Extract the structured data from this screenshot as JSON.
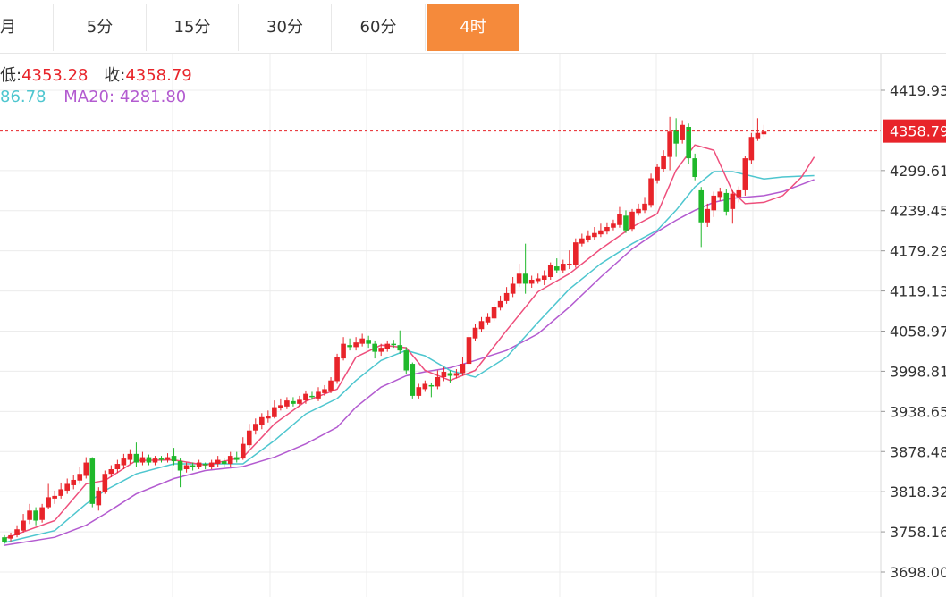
{
  "tabs": [
    {
      "label": "月",
      "active": false
    },
    {
      "label": "5分",
      "active": false
    },
    {
      "label": "15分",
      "active": false
    },
    {
      "label": "30分",
      "active": false
    },
    {
      "label": "60分",
      "active": false
    },
    {
      "label": "4时",
      "active": true
    }
  ],
  "info": {
    "low_label": "低:",
    "low_value": "4353.28",
    "close_label": "收:",
    "close_value": "4358.79",
    "ma10_value": "86.78",
    "ma20_label": "MA20:",
    "ma20_value": "4281.80"
  },
  "colors": {
    "up": "#e8242a",
    "down": "#1fb82b",
    "ma5": "#ee4f7c",
    "ma10": "#4ec6cf",
    "ma20": "#b35bd0",
    "active_tab": "#f58a3b",
    "price_line": "#e8242a"
  },
  "chart_data": {
    "type": "candlestick",
    "y_ticks": [
      "4419.93",
      "4299.61",
      "4239.45",
      "4179.29",
      "4119.13",
      "4058.97",
      "3998.81",
      "3938.65",
      "3878.48",
      "3818.32",
      "3758.16",
      "3698.00"
    ],
    "ylim": [
      3698.0,
      4419.93
    ],
    "current_price": "4358.79",
    "candles": [
      [
        3750,
        3743,
        3753,
        3740
      ],
      [
        3748,
        3753,
        3757,
        3744
      ],
      [
        3753,
        3762,
        3768,
        3750
      ],
      [
        3760,
        3775,
        3785,
        3757
      ],
      [
        3776,
        3790,
        3800,
        3770
      ],
      [
        3790,
        3775,
        3795,
        3768
      ],
      [
        3776,
        3795,
        3800,
        3772
      ],
      [
        3795,
        3810,
        3830,
        3792
      ],
      [
        3808,
        3812,
        3820,
        3800
      ],
      [
        3812,
        3822,
        3832,
        3808
      ],
      [
        3820,
        3830,
        3838,
        3815
      ],
      [
        3828,
        3836,
        3844,
        3822
      ],
      [
        3835,
        3845,
        3855,
        3830
      ],
      [
        3842,
        3862,
        3870,
        3838
      ],
      [
        3868,
        3800,
        3870,
        3795
      ],
      [
        3798,
        3820,
        3825,
        3790
      ],
      [
        3818,
        3845,
        3850,
        3815
      ],
      [
        3845,
        3852,
        3858,
        3840
      ],
      [
        3852,
        3860,
        3866,
        3846
      ],
      [
        3858,
        3868,
        3875,
        3852
      ],
      [
        3866,
        3875,
        3882,
        3860
      ],
      [
        3875,
        3862,
        3892,
        3855
      ],
      [
        3862,
        3870,
        3878,
        3858
      ],
      [
        3870,
        3862,
        3874,
        3858
      ],
      [
        3862,
        3868,
        3872,
        3858
      ],
      [
        3868,
        3866,
        3872,
        3862
      ],
      [
        3866,
        3870,
        3876,
        3862
      ],
      [
        3872,
        3864,
        3884,
        3858
      ],
      [
        3864,
        3850,
        3868,
        3825
      ],
      [
        3852,
        3858,
        3862,
        3847
      ],
      [
        3858,
        3856,
        3862,
        3850
      ],
      [
        3856,
        3862,
        3866,
        3852
      ],
      [
        3860,
        3858,
        3862,
        3852
      ],
      [
        3856,
        3862,
        3866,
        3852
      ],
      [
        3860,
        3866,
        3872,
        3856
      ],
      [
        3864,
        3860,
        3868,
        3856
      ],
      [
        3860,
        3872,
        3878,
        3856
      ],
      [
        3870,
        3866,
        3878,
        3862
      ],
      [
        3868,
        3890,
        3900,
        3866
      ],
      [
        3888,
        3910,
        3920,
        3884
      ],
      [
        3910,
        3920,
        3928,
        3904
      ],
      [
        3918,
        3930,
        3936,
        3912
      ],
      [
        3928,
        3932,
        3940,
        3922
      ],
      [
        3930,
        3945,
        3955,
        3928
      ],
      [
        3944,
        3948,
        3958,
        3940
      ],
      [
        3946,
        3955,
        3960,
        3942
      ],
      [
        3954,
        3950,
        3960,
        3946
      ],
      [
        3950,
        3956,
        3962,
        3946
      ],
      [
        3955,
        3965,
        3970,
        3950
      ],
      [
        3962,
        3960,
        3968,
        3956
      ],
      [
        3958,
        3968,
        3975,
        3954
      ],
      [
        3966,
        3972,
        3978,
        3962
      ],
      [
        3970,
        3985,
        3990,
        3966
      ],
      [
        3984,
        4020,
        4025,
        3980
      ],
      [
        4018,
        4040,
        4050,
        4015
      ],
      [
        4038,
        4035,
        4048,
        4030
      ],
      [
        4035,
        4042,
        4050,
        4030
      ],
      [
        4040,
        4048,
        4055,
        4036
      ],
      [
        4046,
        4040,
        4052,
        4034
      ],
      [
        4040,
        4028,
        4045,
        4018
      ],
      [
        4028,
        4034,
        4040,
        4022
      ],
      [
        4032,
        4040,
        4045,
        4028
      ],
      [
        4040,
        4038,
        4046,
        4034
      ],
      [
        4038,
        4030,
        4060,
        4025
      ],
      [
        4030,
        4000,
        4035,
        3995
      ],
      [
        4010,
        3962,
        4012,
        3958
      ],
      [
        3962,
        3975,
        3980,
        3958
      ],
      [
        3972,
        3980,
        3985,
        3968
      ],
      [
        3978,
        3976,
        3982,
        3960
      ],
      [
        3976,
        3990,
        4000,
        3972
      ],
      [
        3990,
        3998,
        4005,
        3984
      ],
      [
        3996,
        3992,
        4000,
        3982
      ],
      [
        3992,
        3996,
        4002,
        3988
      ],
      [
        3996,
        4010,
        4020,
        3992
      ],
      [
        4010,
        4050,
        4055,
        4006
      ],
      [
        4048,
        4064,
        4070,
        4044
      ],
      [
        4062,
        4074,
        4080,
        4058
      ],
      [
        4072,
        4080,
        4086,
        4068
      ],
      [
        4078,
        4095,
        4100,
        4074
      ],
      [
        4094,
        4104,
        4112,
        4090
      ],
      [
        4104,
        4116,
        4125,
        4100
      ],
      [
        4115,
        4130,
        4140,
        4110
      ],
      [
        4130,
        4145,
        4160,
        4125
      ],
      [
        4145,
        4130,
        4190,
        4115
      ],
      [
        4130,
        4136,
        4142,
        4124
      ],
      [
        4134,
        4138,
        4145,
        4130
      ],
      [
        4136,
        4142,
        4150,
        4128
      ],
      [
        4140,
        4158,
        4162,
        4136
      ],
      [
        4156,
        4150,
        4168,
        4146
      ],
      [
        4150,
        4160,
        4166,
        4146
      ],
      [
        4158,
        4160,
        4180,
        4152
      ],
      [
        4158,
        4192,
        4198,
        4154
      ],
      [
        4190,
        4198,
        4205,
        4186
      ],
      [
        4196,
        4202,
        4210,
        4192
      ],
      [
        4200,
        4206,
        4215,
        4196
      ],
      [
        4204,
        4210,
        4220,
        4200
      ],
      [
        4208,
        4215,
        4222,
        4204
      ],
      [
        4214,
        4220,
        4226,
        4210
      ],
      [
        4218,
        4235,
        4245,
        4214
      ],
      [
        4232,
        4210,
        4240,
        4206
      ],
      [
        4212,
        4238,
        4242,
        4208
      ],
      [
        4236,
        4242,
        4250,
        4232
      ],
      [
        4240,
        4250,
        4260,
        4236
      ],
      [
        4248,
        4288,
        4295,
        4244
      ],
      [
        4285,
        4305,
        4310,
        4280
      ],
      [
        4302,
        4322,
        4330,
        4298
      ],
      [
        4320,
        4358,
        4380,
        4300
      ],
      [
        4360,
        4340,
        4378,
        4320
      ],
      [
        4345,
        4368,
        4375,
        4340
      ],
      [
        4365,
        4318,
        4370,
        4310
      ],
      [
        4318,
        4290,
        4325,
        4285
      ],
      [
        4270,
        4222,
        4275,
        4185
      ],
      [
        4222,
        4242,
        4250,
        4215
      ],
      [
        4240,
        4262,
        4268,
        4230
      ],
      [
        4260,
        4268,
        4274,
        4254
      ],
      [
        4266,
        4238,
        4272,
        4232
      ],
      [
        4242,
        4265,
        4270,
        4220
      ],
      [
        4260,
        4270,
        4276,
        4252
      ],
      [
        4270,
        4318,
        4322,
        4262
      ],
      [
        4315,
        4350,
        4356,
        4310
      ],
      [
        4348,
        4356,
        4378,
        4344
      ],
      [
        4354,
        4358,
        4368,
        4350
      ]
    ],
    "ma5": [
      [
        0,
        3748
      ],
      [
        8,
        3775
      ],
      [
        13,
        3830
      ],
      [
        16,
        3835
      ],
      [
        21,
        3865
      ],
      [
        27,
        3866
      ],
      [
        32,
        3858
      ],
      [
        38,
        3870
      ],
      [
        43,
        3920
      ],
      [
        48,
        3954
      ],
      [
        53,
        3972
      ],
      [
        56,
        4020
      ],
      [
        60,
        4038
      ],
      [
        64,
        4034
      ],
      [
        67,
        4000
      ],
      [
        71,
        3985
      ],
      [
        75,
        4000
      ],
      [
        80,
        4060
      ],
      [
        85,
        4118
      ],
      [
        90,
        4145
      ],
      [
        95,
        4182
      ],
      [
        100,
        4215
      ],
      [
        104,
        4235
      ],
      [
        107,
        4300
      ],
      [
        110,
        4338
      ],
      [
        113,
        4330
      ],
      [
        116,
        4268
      ],
      [
        118,
        4250
      ],
      [
        121,
        4252
      ],
      [
        124,
        4262
      ],
      [
        127,
        4290
      ],
      [
        129,
        4320
      ]
    ],
    "ma10": [
      [
        0,
        3742
      ],
      [
        8,
        3760
      ],
      [
        13,
        3800
      ],
      [
        16,
        3820
      ],
      [
        21,
        3845
      ],
      [
        27,
        3860
      ],
      [
        32,
        3860
      ],
      [
        38,
        3860
      ],
      [
        43,
        3895
      ],
      [
        48,
        3935
      ],
      [
        53,
        3958
      ],
      [
        56,
        3985
      ],
      [
        60,
        4015
      ],
      [
        64,
        4030
      ],
      [
        67,
        4022
      ],
      [
        71,
        4000
      ],
      [
        75,
        3990
      ],
      [
        80,
        4020
      ],
      [
        85,
        4072
      ],
      [
        90,
        4122
      ],
      [
        95,
        4160
      ],
      [
        100,
        4190
      ],
      [
        104,
        4210
      ],
      [
        107,
        4240
      ],
      [
        110,
        4275
      ],
      [
        113,
        4298
      ],
      [
        116,
        4298
      ],
      [
        121,
        4287
      ],
      [
        124,
        4290
      ],
      [
        129,
        4292
      ]
    ],
    "ma20": [
      [
        0,
        3738
      ],
      [
        8,
        3750
      ],
      [
        13,
        3768
      ],
      [
        16,
        3785
      ],
      [
        21,
        3815
      ],
      [
        27,
        3838
      ],
      [
        32,
        3850
      ],
      [
        38,
        3856
      ],
      [
        43,
        3870
      ],
      [
        48,
        3890
      ],
      [
        53,
        3915
      ],
      [
        56,
        3945
      ],
      [
        60,
        3975
      ],
      [
        64,
        3992
      ],
      [
        67,
        3998
      ],
      [
        71,
        4004
      ],
      [
        75,
        4015
      ],
      [
        80,
        4030
      ],
      [
        85,
        4055
      ],
      [
        90,
        4095
      ],
      [
        95,
        4140
      ],
      [
        100,
        4182
      ],
      [
        104,
        4208
      ],
      [
        107,
        4225
      ],
      [
        110,
        4240
      ],
      [
        113,
        4252
      ],
      [
        116,
        4258
      ],
      [
        121,
        4262
      ],
      [
        124,
        4268
      ],
      [
        129,
        4286
      ]
    ]
  }
}
